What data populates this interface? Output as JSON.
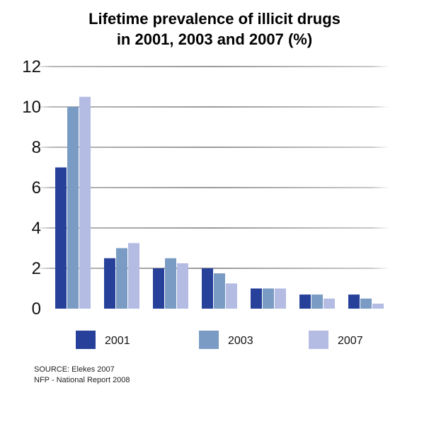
{
  "chart_data": {
    "type": "bar",
    "title": [
      "Lifetime prevalence of illicit drugs",
      "in 2001, 2003 and 2007 (%)"
    ],
    "xlabel": "",
    "ylabel": "",
    "ylim": [
      0,
      12
    ],
    "yticks": [
      0,
      2,
      4,
      6,
      8,
      10,
      12
    ],
    "grid": true,
    "legend_position": "bottom",
    "categories": [
      "",
      "",
      "",
      "",
      "",
      "",
      ""
    ],
    "series": [
      {
        "name": "2001",
        "color": "#27419a",
        "values": [
          7.0,
          2.5,
          2.0,
          2.0,
          1.0,
          0.7,
          0.7
        ]
      },
      {
        "name": "2003",
        "color": "#7a9cc4",
        "values": [
          10.0,
          3.0,
          2.5,
          1.75,
          1.0,
          0.7,
          0.5
        ]
      },
      {
        "name": "2007",
        "color": "#b4bce3",
        "values": [
          10.5,
          3.25,
          2.25,
          1.25,
          1.0,
          0.5,
          0.25
        ]
      }
    ]
  },
  "source": {
    "line1": "SOURCE: Elekes 2007",
    "line2": "NFP - National Report 2008"
  }
}
